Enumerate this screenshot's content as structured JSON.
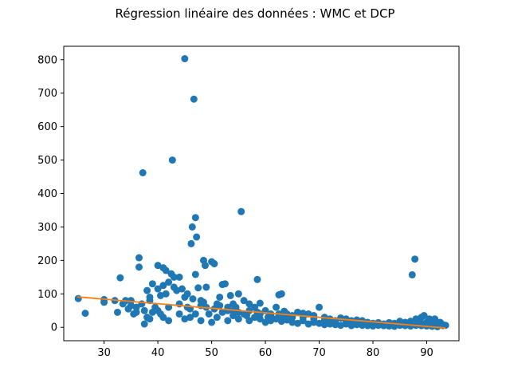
{
  "chart_data": {
    "type": "scatter",
    "title": "Régression linéaire des données : WMC et DCP",
    "xlabel": "",
    "ylabel": "",
    "xlim": [
      22.5,
      96
    ],
    "ylim": [
      -40,
      840
    ],
    "xticks": [
      30,
      40,
      50,
      60,
      70,
      80,
      90
    ],
    "yticks": [
      0,
      100,
      200,
      300,
      400,
      500,
      600,
      700,
      800
    ],
    "grid": false,
    "legend": "none",
    "colors": {
      "points": "#1f77b4",
      "line": "#ff7f0e"
    },
    "series": [
      {
        "kind": "points",
        "points": [
          [
            25.2,
            86
          ],
          [
            26.5,
            42
          ],
          [
            30,
            83
          ],
          [
            32,
            80
          ],
          [
            32.5,
            45
          ],
          [
            33,
            148
          ],
          [
            34,
            80
          ],
          [
            34.5,
            55
          ],
          [
            35,
            80
          ],
          [
            35.5,
            40
          ],
          [
            36,
            60
          ],
          [
            36.5,
            180
          ],
          [
            36.5,
            208
          ],
          [
            37,
            70
          ],
          [
            37.2,
            462
          ],
          [
            37.5,
            50
          ],
          [
            37.5,
            10
          ],
          [
            38,
            110
          ],
          [
            38,
            30
          ],
          [
            38.5,
            90
          ],
          [
            38.5,
            80
          ],
          [
            39,
            45
          ],
          [
            39,
            130
          ],
          [
            39.5,
            60
          ],
          [
            40,
            185
          ],
          [
            40,
            115
          ],
          [
            40,
            50
          ],
          [
            40.5,
            95
          ],
          [
            41,
            178
          ],
          [
            41,
            125
          ],
          [
            41,
            30
          ],
          [
            41.5,
            100
          ],
          [
            41.5,
            170
          ],
          [
            42,
            135
          ],
          [
            42,
            60
          ],
          [
            42.5,
            160
          ],
          [
            42.7,
            500
          ],
          [
            43,
            120
          ],
          [
            43,
            150
          ],
          [
            43.5,
            110
          ],
          [
            44,
            150
          ],
          [
            44,
            40
          ],
          [
            44.5,
            115
          ],
          [
            45,
            803
          ],
          [
            45,
            90
          ],
          [
            45.5,
            60
          ],
          [
            46,
            30
          ],
          [
            46.2,
            250
          ],
          [
            46.4,
            300
          ],
          [
            46.7,
            682
          ],
          [
            47,
            328
          ],
          [
            47,
            158
          ],
          [
            47.2,
            270
          ],
          [
            47.5,
            118
          ],
          [
            48,
            80
          ],
          [
            48.5,
            200
          ],
          [
            48.8,
            185
          ],
          [
            49,
            120
          ],
          [
            49.5,
            40
          ],
          [
            50,
            196
          ],
          [
            50.5,
            190
          ],
          [
            51,
            70
          ],
          [
            51.5,
            90
          ],
          [
            52,
            128
          ],
          [
            52.5,
            130
          ],
          [
            53,
            50
          ],
          [
            53.5,
            95
          ],
          [
            54,
            70
          ],
          [
            54.5,
            60
          ],
          [
            55,
            100
          ],
          [
            55.5,
            346
          ],
          [
            56,
            80
          ],
          [
            57,
            70
          ],
          [
            58,
            60
          ],
          [
            58.5,
            143
          ],
          [
            59,
            72
          ],
          [
            60,
            50
          ],
          [
            61,
            40
          ],
          [
            62,
            60
          ],
          [
            62.5,
            97
          ],
          [
            63,
            100
          ],
          [
            63.5,
            48
          ],
          [
            64,
            40
          ],
          [
            65,
            30
          ],
          [
            66,
            45
          ],
          [
            67,
            42
          ],
          [
            68,
            40
          ],
          [
            69,
            35
          ],
          [
            70,
            60
          ],
          [
            71,
            30
          ],
          [
            72,
            25
          ],
          [
            73,
            20
          ],
          [
            74,
            28
          ],
          [
            75,
            25
          ],
          [
            76,
            20
          ],
          [
            77,
            22
          ],
          [
            78,
            20
          ],
          [
            79,
            15
          ],
          [
            80,
            12
          ],
          [
            81,
            14
          ],
          [
            82,
            10
          ],
          [
            83,
            14
          ],
          [
            84,
            12
          ],
          [
            85,
            18
          ],
          [
            86,
            15
          ],
          [
            87,
            18
          ],
          [
            87.3,
            157
          ],
          [
            87.8,
            204
          ],
          [
            88,
            25
          ],
          [
            88.5,
            20
          ],
          [
            89,
            30
          ],
          [
            89.5,
            35
          ],
          [
            90,
            15
          ],
          [
            90.5,
            25
          ],
          [
            91,
            20
          ],
          [
            91.5,
            25
          ],
          [
            92,
            10
          ],
          [
            92.5,
            15
          ],
          [
            93,
            8
          ],
          [
            93.5,
            6
          ],
          [
            30,
            75
          ],
          [
            33.5,
            70
          ],
          [
            35,
            65
          ],
          [
            36,
            45
          ],
          [
            38.5,
            25
          ],
          [
            40.5,
            40
          ],
          [
            42,
            20
          ],
          [
            44,
            70
          ],
          [
            45,
            25
          ],
          [
            46,
            55
          ],
          [
            47,
            40
          ],
          [
            48,
            20
          ],
          [
            49,
            60
          ],
          [
            50,
            15
          ],
          [
            51,
            30
          ],
          [
            52,
            45
          ],
          [
            53,
            20
          ],
          [
            54,
            35
          ],
          [
            55,
            25
          ],
          [
            56,
            40
          ],
          [
            57,
            20
          ],
          [
            58,
            30
          ],
          [
            59,
            25
          ],
          [
            60,
            15
          ],
          [
            61,
            20
          ],
          [
            62,
            25
          ],
          [
            63,
            18
          ],
          [
            64,
            22
          ],
          [
            65,
            15
          ],
          [
            66,
            12
          ],
          [
            67,
            20
          ],
          [
            68,
            10
          ],
          [
            69,
            15
          ],
          [
            70,
            12
          ],
          [
            71,
            8
          ],
          [
            72,
            10
          ],
          [
            73,
            8
          ],
          [
            74,
            6
          ],
          [
            75,
            10
          ],
          [
            76,
            5
          ],
          [
            77,
            8
          ],
          [
            78,
            6
          ],
          [
            79,
            5
          ],
          [
            80,
            4
          ],
          [
            81,
            6
          ],
          [
            82,
            5
          ],
          [
            83,
            4
          ],
          [
            84,
            3
          ],
          [
            85,
            6
          ],
          [
            86,
            5
          ],
          [
            87,
            4
          ],
          [
            88,
            6
          ],
          [
            89,
            5
          ],
          [
            90,
            4
          ],
          [
            91,
            3
          ],
          [
            92,
            2
          ],
          [
            48,
            65
          ],
          [
            50.5,
            55
          ],
          [
            53,
            60
          ],
          [
            55,
            45
          ],
          [
            57,
            50
          ],
          [
            59,
            40
          ],
          [
            61,
            35
          ],
          [
            63,
            30
          ],
          [
            65,
            35
          ],
          [
            67,
            30
          ],
          [
            69,
            25
          ],
          [
            71,
            20
          ],
          [
            73,
            15
          ],
          [
            75,
            18
          ],
          [
            77,
            12
          ],
          [
            79,
            10
          ],
          [
            81,
            9
          ],
          [
            83,
            8
          ],
          [
            85,
            9
          ],
          [
            87,
            10
          ],
          [
            89,
            12
          ],
          [
            91,
            10
          ],
          [
            93,
            5
          ],
          [
            45.5,
            100
          ],
          [
            46.5,
            85
          ],
          [
            48.5,
            75
          ],
          [
            51.5,
            65
          ],
          [
            54,
            50
          ],
          [
            56.5,
            35
          ],
          [
            58.5,
            45
          ],
          [
            60.5,
            30
          ],
          [
            62.5,
            40
          ],
          [
            64.5,
            28
          ]
        ]
      },
      {
        "kind": "line",
        "x": [
          25,
          93.5
        ],
        "y": [
          91,
          -2
        ]
      }
    ]
  }
}
